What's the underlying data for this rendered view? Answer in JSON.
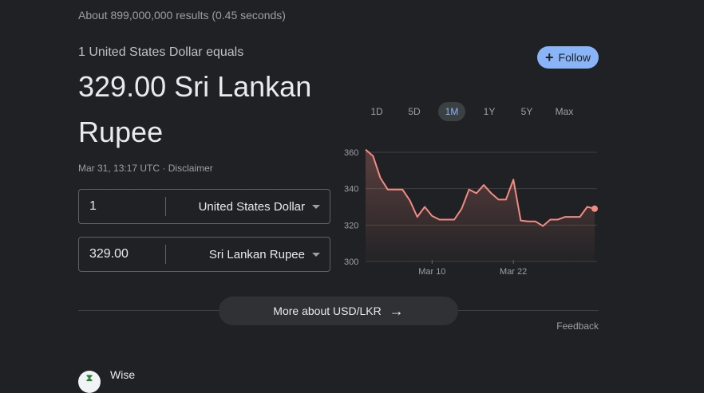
{
  "results_stats": "About 899,000,000 results (0.45 seconds)",
  "converter": {
    "equals_text": "1 United States Dollar equals",
    "result_amount": "329.00 Sri Lankan Rupee",
    "timestamp": "Mar 31, 13:17 UTC",
    "separator": "·",
    "disclaimer": "Disclaimer",
    "from": {
      "value": "1",
      "currency": "United States Dollar"
    },
    "to": {
      "value": "329.00",
      "currency": "Sri Lankan Rupee"
    }
  },
  "follow": {
    "label": "Follow",
    "icon": "plus-icon"
  },
  "ranges": {
    "items": [
      "1D",
      "5D",
      "1M",
      "1Y",
      "5Y",
      "Max"
    ],
    "active": "1M"
  },
  "more_button": {
    "label": "More about USD/LKR",
    "icon": "arrow-right-icon"
  },
  "feedback": "Feedback",
  "source": {
    "name": "Wise"
  },
  "colors": {
    "background": "#202124",
    "accent": "#8ab4f8",
    "line": "#f28b82"
  },
  "chart_data": {
    "type": "area",
    "title": "",
    "xlabel": "",
    "ylabel": "",
    "ylim": [
      300,
      360
    ],
    "yticks": [
      300,
      320,
      340,
      360
    ],
    "xticks": [
      "Mar 10",
      "Mar 22"
    ],
    "grid": true,
    "series": [
      {
        "values": [
          361.5,
          358,
          346,
          339.5,
          339.5,
          339.5,
          333.5,
          324.5,
          330,
          325,
          323,
          323,
          323,
          329,
          339.5,
          337.5,
          342,
          337.5,
          334,
          334,
          345,
          322.5,
          322,
          322,
          319.5,
          323,
          323,
          324.5,
          324.5,
          324.5,
          330,
          329
        ]
      }
    ]
  }
}
